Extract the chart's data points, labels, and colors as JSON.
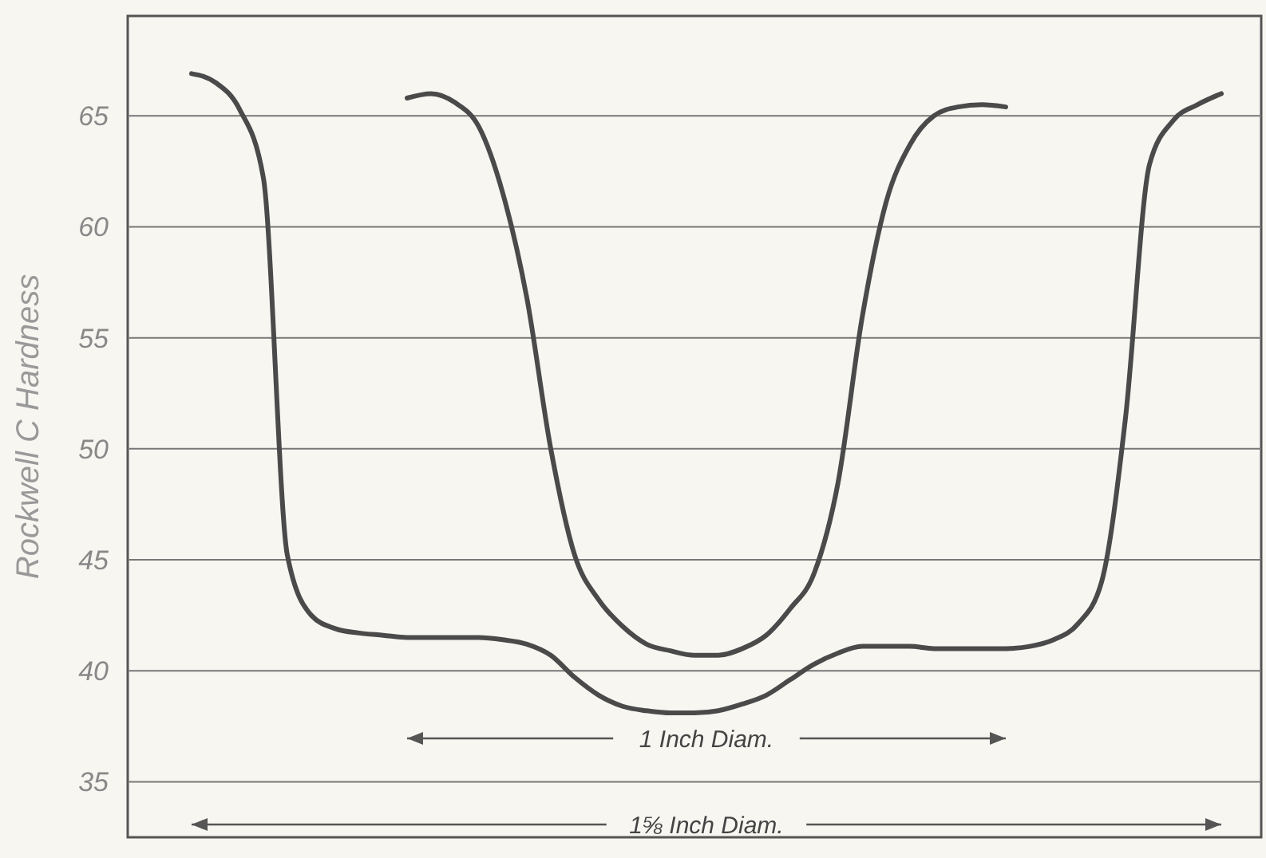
{
  "chart_data": {
    "type": "line",
    "ylabel": "Rockwell C Hardness",
    "categories": [
      null,
      null,
      null,
      null,
      null,
      null,
      null,
      null,
      null,
      null,
      null,
      null,
      null,
      null,
      null,
      null,
      null,
      null,
      null,
      null,
      null,
      null,
      null,
      null,
      null,
      null,
      null,
      null,
      null,
      null,
      null,
      null,
      null,
      null,
      null,
      null,
      null,
      null,
      null,
      null,
      null,
      null,
      null,
      null
    ],
    "series": [
      {
        "color": "#4a4a4a",
        "values": [
          66.9,
          66.5,
          65.3,
          62.2,
          45.2,
          42.5,
          41.9,
          41.7,
          41.6,
          41.5,
          41.5,
          41.5,
          41.5,
          41.4,
          41.2,
          40.7,
          39.7,
          38.9,
          38.4,
          38.2,
          38.1,
          38.1,
          38.2,
          38.5,
          38.9,
          39.6,
          40.3,
          40.8,
          41.1,
          41.1,
          41.1,
          41.0,
          41.0,
          41.0,
          41.0,
          41.1,
          41.4,
          42.1,
          44.0,
          51.4,
          62.8,
          64.8,
          65.5,
          66.0
        ]
      },
      {
        "color": "#4a4a4a",
        "values": [
          null,
          null,
          null,
          null,
          null,
          null,
          null,
          null,
          null,
          65.8,
          66.0,
          65.6,
          64.5,
          61.5,
          56.8,
          50.0,
          45.2,
          43.2,
          42.0,
          41.2,
          40.9,
          40.7,
          40.7,
          41.0,
          41.6,
          42.8,
          44.4,
          48.5,
          55.9,
          61.1,
          63.7,
          65.0,
          65.4,
          65.5,
          65.4,
          null,
          null,
          null,
          null,
          null,
          null,
          null,
          null,
          null
        ]
      }
    ],
    "ylim": [
      32.5,
      69.5
    ],
    "yticks": [
      35,
      40,
      45,
      50,
      55,
      60,
      65
    ],
    "grid": "y",
    "tick_labels": "y",
    "marker": "none",
    "line_style": "solid",
    "annotations": [
      "1 Inch Diam.",
      "1⅝ Inch Diam."
    ]
  }
}
